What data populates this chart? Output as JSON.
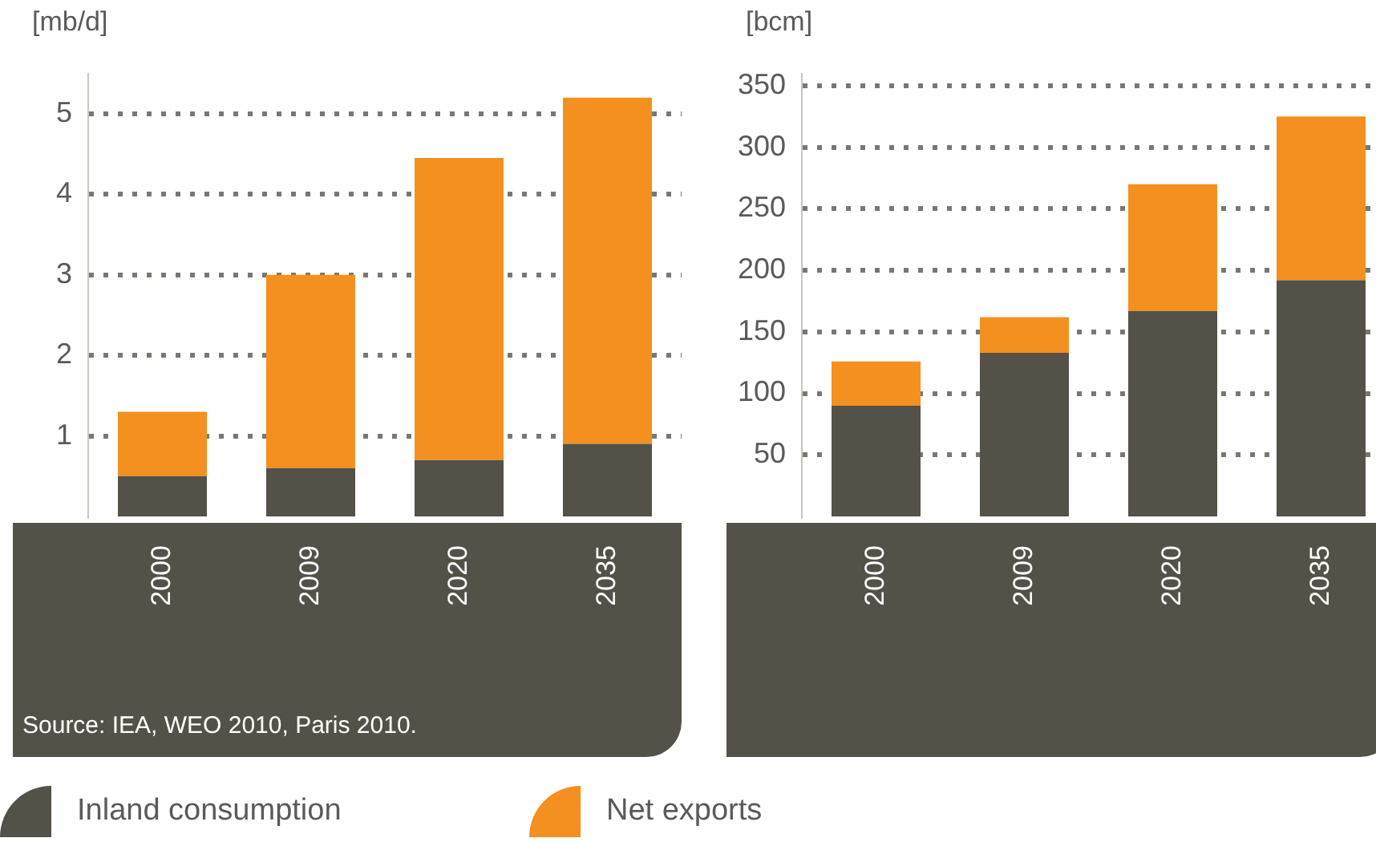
{
  "chart_data": [
    {
      "type": "bar",
      "ylabel": "[mb/d]",
      "categories": [
        "2000",
        "2009",
        "2020",
        "2035"
      ],
      "stacked": true,
      "series": [
        {
          "name": "Inland consumption",
          "color": "#535148",
          "values": [
            0.5,
            0.6,
            0.7,
            0.9
          ]
        },
        {
          "name": "Net exports",
          "color": "#f39020",
          "values": [
            0.8,
            2.4,
            3.75,
            4.3
          ]
        }
      ],
      "ylim": [
        0,
        5.5
      ],
      "yticks": [
        1,
        2,
        3,
        4,
        5
      ],
      "grid": "y",
      "legend": "bottom",
      "annotations": [
        "Source: IEA, WEO 2010, Paris 2010."
      ]
    },
    {
      "type": "bar",
      "ylabel": "[bcm]",
      "categories": [
        "2000",
        "2009",
        "2020",
        "2035"
      ],
      "stacked": true,
      "series": [
        {
          "name": "Inland consumption",
          "color": "#535148",
          "values": [
            90,
            133,
            167,
            192
          ]
        },
        {
          "name": "Net exports",
          "color": "#f39020",
          "values": [
            36,
            29,
            103,
            133
          ]
        }
      ],
      "ylim": [
        0,
        360
      ],
      "yticks": [
        50,
        100,
        150,
        200,
        250,
        300,
        350
      ],
      "grid": "y"
    }
  ]
}
